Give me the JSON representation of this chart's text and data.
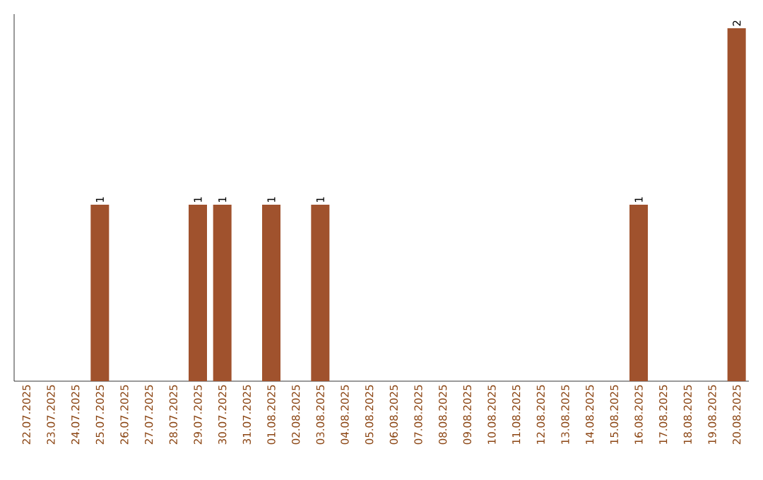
{
  "chart_data": {
    "type": "bar",
    "categories": [
      "22.07.2025",
      "23.07.2025",
      "24.07.2025",
      "25.07.2025",
      "26.07.2025",
      "27.07.2025",
      "28.07.2025",
      "29.07.2025",
      "30.07.2025",
      "31.07.2025",
      "01.08.2025",
      "02.08.2025",
      "03.08.2025",
      "04.08.2025",
      "05.08.2025",
      "06.08.2025",
      "07.08.2025",
      "08.08.2025",
      "09.08.2025",
      "10.08.2025",
      "11.08.2025",
      "12.08.2025",
      "13.08.2025",
      "14.08.2025",
      "15.08.2025",
      "16.08.2025",
      "17.08.2025",
      "18.08.2025",
      "19.08.2025",
      "20.08.2025"
    ],
    "values": [
      0,
      0,
      0,
      1,
      0,
      0,
      0,
      1,
      1,
      0,
      1,
      0,
      1,
      0,
      0,
      0,
      0,
      0,
      0,
      0,
      0,
      0,
      0,
      0,
      0,
      1,
      0,
      0,
      0,
      2
    ],
    "value_labels": [
      null,
      null,
      null,
      "1",
      null,
      null,
      null,
      "1",
      "1",
      null,
      "1",
      null,
      "1",
      null,
      null,
      null,
      null,
      null,
      null,
      null,
      null,
      null,
      null,
      null,
      null,
      "1",
      null,
      null,
      null,
      "2"
    ],
    "color": "#a0522d",
    "ylim": [
      0,
      2.08
    ]
  }
}
